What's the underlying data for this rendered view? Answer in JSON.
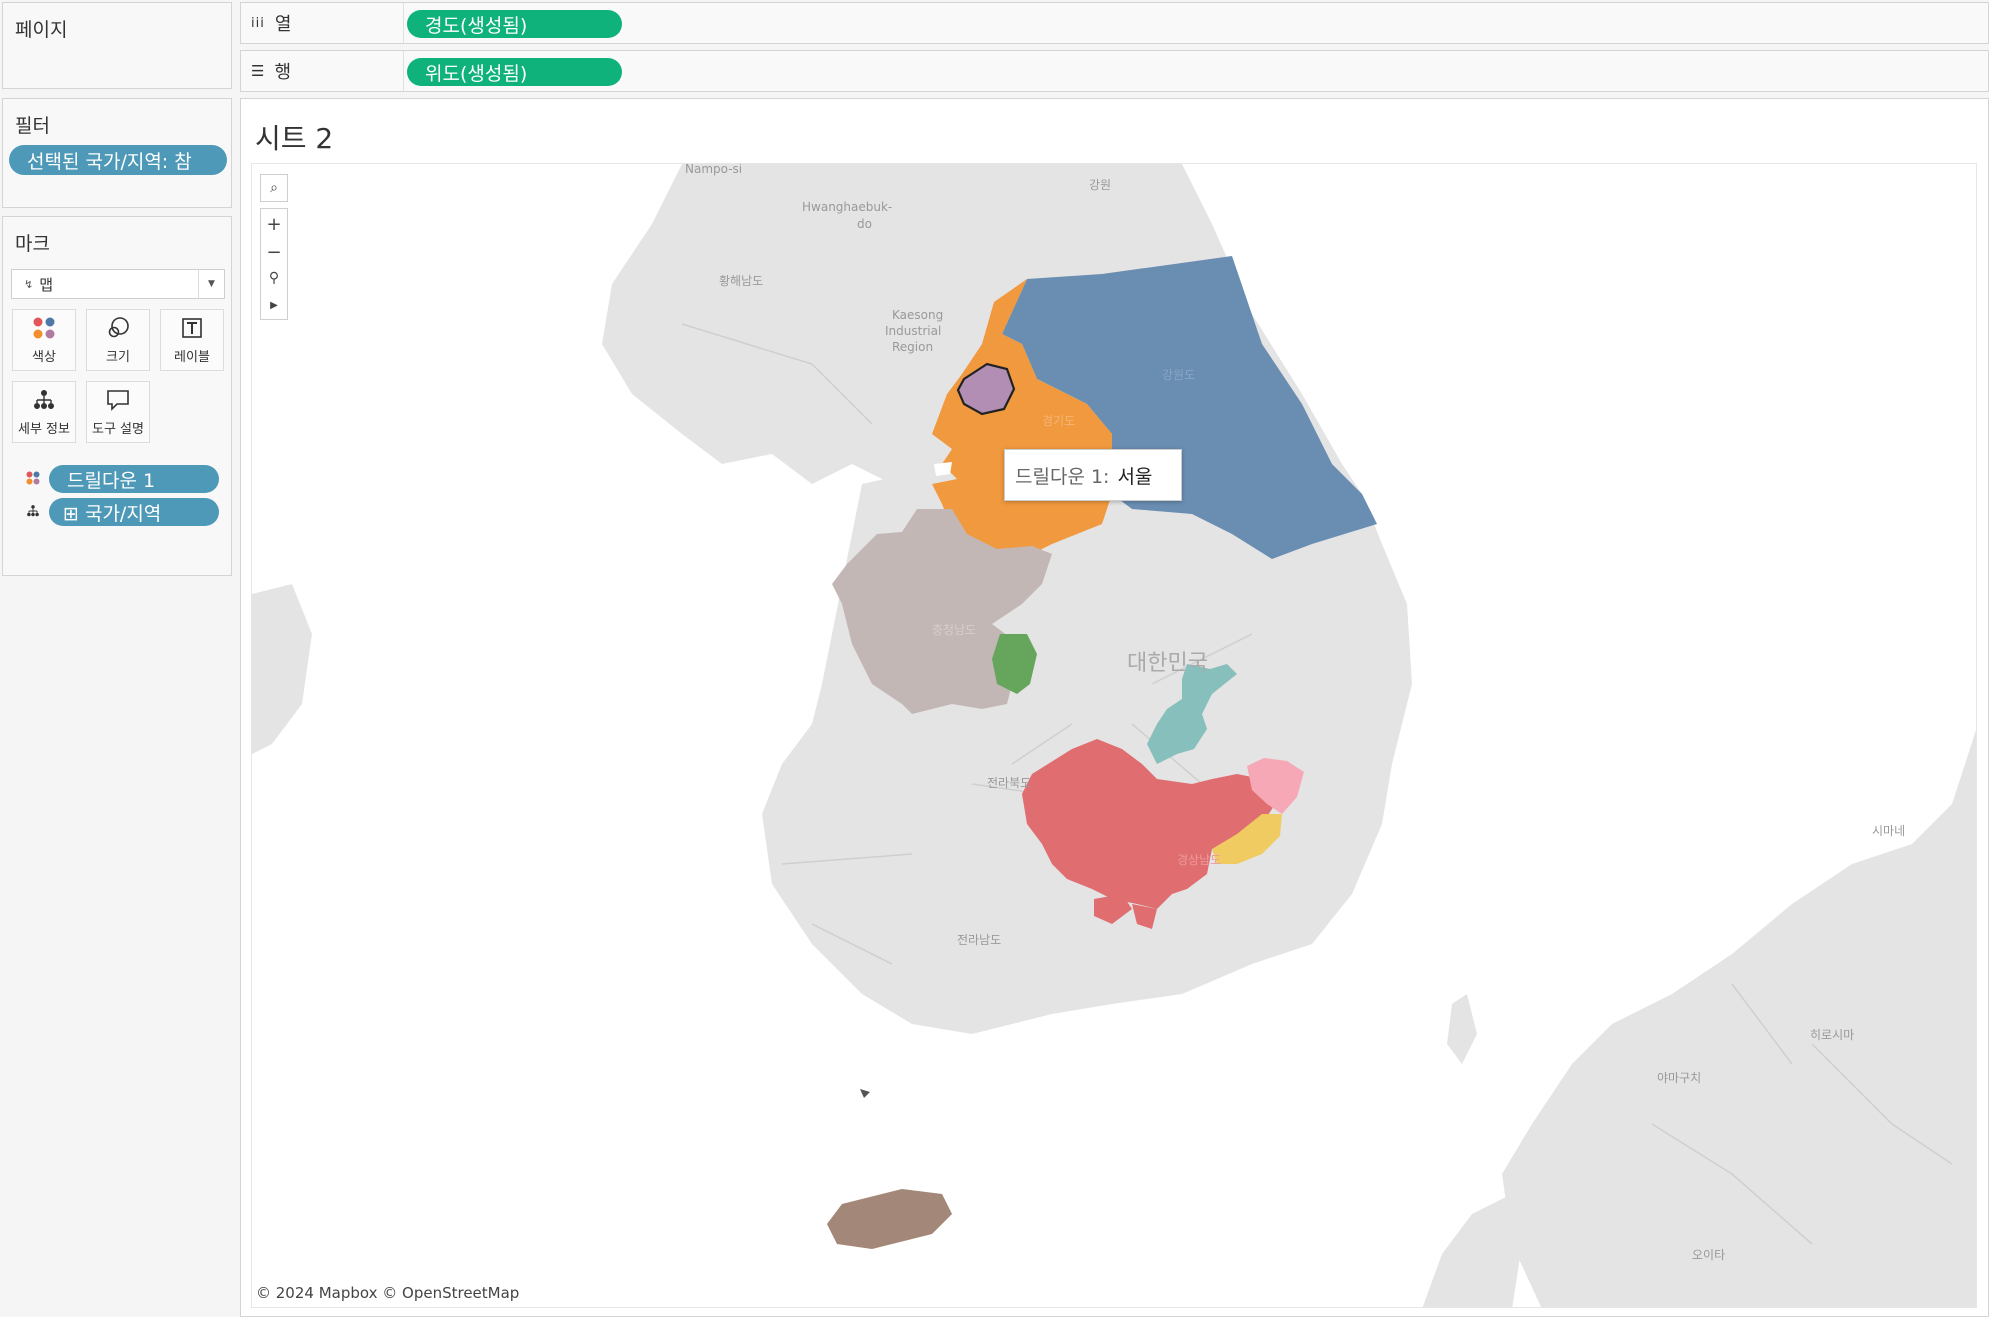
{
  "pages_panel": {
    "title": "페이지"
  },
  "filters_panel": {
    "title": "필터",
    "filter_pill": "선택된 국가/지역: 참"
  },
  "marks_panel": {
    "title": "마크",
    "mark_type": "맵",
    "buttons": {
      "color": "색상",
      "size": "크기",
      "label": "레이블",
      "detail": "세부 정보",
      "tooltip": "도구 설명"
    },
    "fields": {
      "color_field": "드릴다운 1",
      "detail_field": "⊞ 국가/지역"
    }
  },
  "shelves": {
    "columns": {
      "label": "열",
      "pill": "경도(생성됨)"
    },
    "rows": {
      "label": "행",
      "pill": "위도(생성됨)"
    }
  },
  "sheet": {
    "title": "시트 2"
  },
  "tooltip": {
    "key": "드릴다운 1:",
    "value": "서울"
  },
  "map_labels": {
    "nampo": "Nampo-si",
    "gangwon_nk": "강원",
    "hwanghaebuk_1": "Hwanghaebuk-",
    "hwanghaebuk_2": "do",
    "hwanghaenam": "황해남도",
    "kaesong_1": "Kaesong",
    "kaesong_2": "Industrial",
    "kaesong_3": "Region",
    "gangwon": "강원도",
    "gyeonggi": "경기도",
    "chungnam": "충청남도",
    "korea": "대한민국",
    "jeonbuk": "전라북도",
    "jeonnam": "전라남도",
    "gyeongnam": "경상남도",
    "shimane": "시마네",
    "hiroshima": "히로시마",
    "yamaguchi": "야마구치",
    "oita": "오이타"
  },
  "attribution": "© 2024 Mapbox © OpenStreetMap",
  "colors": {
    "seoul": "#b28eb5",
    "gyeonggi": "#f0993f",
    "gangwon": "#6a8db2",
    "chungnam": "#c3b7b5",
    "sejong": "#66a65c",
    "gyeongbuk": "#86bfbb",
    "gyeongnam": "#e06d70",
    "ulsan": "#f7a8b6",
    "busan": "#efcb62",
    "jeju": "#a38778",
    "pill_green": "#0fb27b",
    "pill_blue": "#4f99b8",
    "land": "#e4e4e4",
    "sea": "#ffffff"
  }
}
